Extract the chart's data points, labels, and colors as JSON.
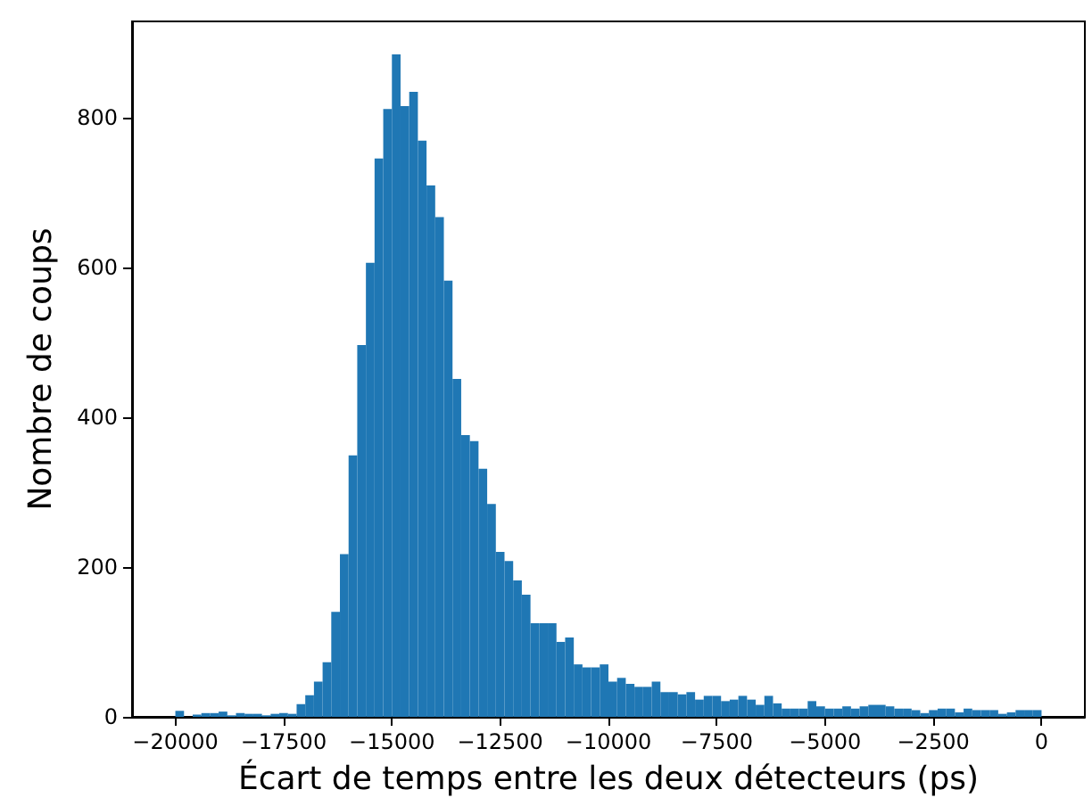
{
  "chart_data": {
    "type": "histogram",
    "xlabel": "Écart de temps entre les deux détecteurs (ps)",
    "ylabel": "Nombre de coups",
    "color": "#1f77b4",
    "bins": [
      -20000,
      -19800,
      -19600,
      -19400,
      -19200,
      -19000,
      -18800,
      -18600,
      -18400,
      -18200,
      -18000,
      -17800,
      -17600,
      -17400,
      -17200,
      -17000,
      -16800,
      -16600,
      -16400,
      -16200,
      -16000,
      -15800,
      -15600,
      -15400,
      -15200,
      -15000,
      -14800,
      -14600,
      -14400,
      -14200,
      -14000,
      -13800,
      -13600,
      -13400,
      -13200,
      -13000,
      -12800,
      -12600,
      -12400,
      -12200,
      -12000,
      -11800,
      -11600,
      -11400,
      -11200,
      -11000,
      -10800,
      -10600,
      -10400,
      -10200,
      -10000,
      -9800,
      -9600,
      -9400,
      -9200,
      -9000,
      -8800,
      -8600,
      -8400,
      -8200,
      -8000,
      -7800,
      -7600,
      -7400,
      -7200,
      -7000,
      -6800,
      -6600,
      -6400,
      -6200,
      -6000,
      -5800,
      -5600,
      -5400,
      -5200,
      -5000,
      -4800,
      -4600,
      -4400,
      -4200,
      -4000,
      -3800,
      -3600,
      -3400,
      -3200,
      -3000,
      -2800,
      -2600,
      -2400,
      -2200,
      -2000,
      -1800,
      -1600,
      -1400,
      -1200,
      -1000,
      -800,
      -600,
      -400,
      -200,
      0
    ],
    "values": [
      8,
      0,
      3,
      5,
      5,
      7,
      2,
      5,
      4,
      4,
      2,
      4,
      5,
      4,
      17,
      29,
      47,
      73,
      140,
      217,
      349,
      496,
      606,
      745,
      811,
      884,
      815,
      834,
      769,
      709,
      667,
      582,
      451,
      376,
      368,
      331,
      284,
      220,
      208,
      182,
      163,
      125,
      125,
      125,
      100,
      106,
      70,
      66,
      66,
      70,
      47,
      52,
      44,
      40,
      40,
      47,
      33,
      33,
      30,
      33,
      23,
      28,
      28,
      21,
      23,
      28,
      23,
      16,
      28,
      18,
      11,
      11,
      11,
      21,
      14,
      11,
      11,
      14,
      11,
      14,
      16,
      16,
      14,
      11,
      11,
      9,
      5,
      9,
      11,
      11,
      6,
      11,
      9,
      9,
      9,
      4,
      6,
      9,
      9,
      9
    ],
    "xlim": [
      -21000,
      1000
    ],
    "ylim": [
      0,
      928
    ],
    "xticks": [
      {
        "value": -20000,
        "label": "−20000"
      },
      {
        "value": -17500,
        "label": "−17500"
      },
      {
        "value": -15000,
        "label": "−15000"
      },
      {
        "value": -12500,
        "label": "−12500"
      },
      {
        "value": -10000,
        "label": "−10000"
      },
      {
        "value": -7500,
        "label": "−7500"
      },
      {
        "value": -5000,
        "label": "−5000"
      },
      {
        "value": -2500,
        "label": "−2500"
      },
      0
    ],
    "yticks": [
      0,
      200,
      400,
      600,
      800
    ],
    "grid": false
  }
}
